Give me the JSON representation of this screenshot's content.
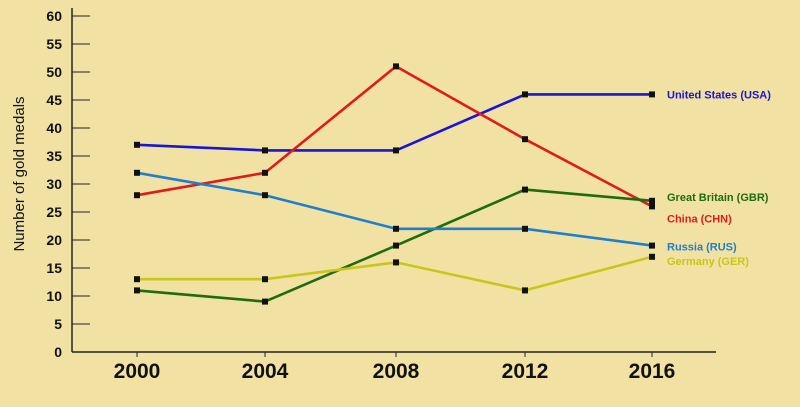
{
  "chart_data": {
    "type": "line",
    "ylabel": "Number of gold medals",
    "xlabel": "",
    "ylim": [
      0,
      60
    ],
    "yticks": [
      0,
      5,
      10,
      15,
      20,
      25,
      30,
      35,
      40,
      45,
      50,
      55,
      60
    ],
    "categories": [
      "2000",
      "2004",
      "2008",
      "2012",
      "2016"
    ],
    "grid": false,
    "series": [
      {
        "name": "United States (USA)",
        "color": "#1a14d6",
        "values": [
          37,
          36,
          36,
          46,
          46
        ]
      },
      {
        "name": "China (CHN)",
        "color": "#e01b1b",
        "values": [
          28,
          32,
          51,
          38,
          26
        ]
      },
      {
        "name": "Great Britain (GBR)",
        "color": "#1f6b10",
        "values": [
          11,
          9,
          19,
          29,
          27
        ]
      },
      {
        "name": "Russia (RUS)",
        "color": "#1f7fcf",
        "values": [
          32,
          28,
          22,
          22,
          19
        ]
      },
      {
        "name": "Germany (GER)",
        "color": "#c9c51a",
        "values": [
          13,
          13,
          16,
          11,
          17
        ]
      }
    ]
  }
}
